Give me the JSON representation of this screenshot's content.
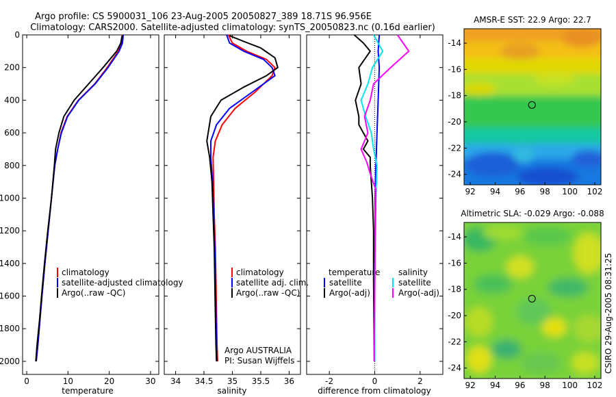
{
  "title_line1": "Argo profile: CS 5900031_106 23-Aug-2005 20050827_389 18.71S 96.956E",
  "title_line2": "Climatology: CARS2000. Satellite-adjusted climatology: synTS_20050823.nc (0.16d earlier)",
  "side_label": "CSIRO 29-Aug-2005 08:31:25",
  "colors": {
    "climatology": "#ff0000",
    "satellite": "#0000ff",
    "argo": "#000000",
    "salinity_satellite": "#00e5ee",
    "salinity_argo": "#ff00ff"
  },
  "chart_data": [
    {
      "type": "line",
      "xlabel": "temperature",
      "ylabel": "",
      "xlim": [
        -1,
        32
      ],
      "ylim": [
        2080,
        0
      ],
      "xticks": [
        0,
        10,
        20,
        30
      ],
      "yticks": [
        0,
        200,
        400,
        600,
        800,
        1000,
        1200,
        1400,
        1600,
        1800,
        2000
      ],
      "series": [
        {
          "name": "climatology",
          "color": "#ff0000",
          "x": [
            23.2,
            23.0,
            22.2,
            19.5,
            16.5,
            12.5,
            9.8,
            8.3,
            7.5,
            6.8,
            6.0,
            5.2,
            4.4,
            3.7,
            3.2,
            2.7,
            2.3
          ],
          "y": [
            0,
            50,
            100,
            200,
            300,
            400,
            500,
            600,
            700,
            800,
            1000,
            1200,
            1400,
            1600,
            1750,
            1900,
            2000
          ]
        },
        {
          "name": "satellite-adjusted climatology",
          "color": "#0000ff",
          "x": [
            23.4,
            23.2,
            22.4,
            19.7,
            16.6,
            12.6,
            9.9,
            8.4,
            7.5,
            6.8,
            6.0,
            5.2,
            4.4,
            3.7,
            3.2,
            2.7,
            2.3
          ],
          "y": [
            0,
            50,
            100,
            200,
            300,
            400,
            500,
            600,
            700,
            800,
            1000,
            1200,
            1400,
            1600,
            1750,
            1900,
            2000
          ]
        },
        {
          "name": "Argo(..raw -QC)",
          "color": "#000000",
          "x": [
            23.1,
            22.8,
            21.8,
            18.5,
            15.0,
            11.5,
            9.0,
            7.8,
            7.0,
            6.7,
            6.0,
            5.1,
            4.3,
            3.6,
            3.1,
            2.5,
            2.2
          ],
          "y": [
            5,
            50,
            100,
            200,
            300,
            400,
            500,
            600,
            700,
            800,
            1000,
            1200,
            1400,
            1600,
            1750,
            1900,
            2000
          ]
        }
      ],
      "legend": [
        "climatology",
        "satellite-adjusted climatology",
        "Argo(..raw -QC)"
      ]
    },
    {
      "type": "line",
      "xlabel": "salinity",
      "ylabel": "",
      "xlim": [
        33.8,
        36.2
      ],
      "ylim": [
        2080,
        0
      ],
      "xticks": [
        34,
        34.5,
        35,
        35.5,
        36
      ],
      "series": [
        {
          "name": "climatology",
          "color": "#ff0000",
          "x": [
            34.93,
            35.0,
            35.25,
            35.6,
            35.75,
            35.7,
            35.4,
            35.05,
            34.82,
            34.7,
            34.66,
            34.67,
            34.68,
            34.7,
            34.71,
            34.72,
            34.73,
            34.74
          ],
          "y": [
            0,
            50,
            100,
            150,
            200,
            250,
            350,
            450,
            550,
            650,
            750,
            900,
            1100,
            1300,
            1500,
            1700,
            1900,
            2000
          ]
        },
        {
          "name": "satellite adj. clim.",
          "color": "#0000ff",
          "x": [
            34.9,
            34.95,
            35.2,
            35.55,
            35.7,
            35.75,
            35.35,
            34.95,
            34.72,
            34.62,
            34.62,
            34.65,
            34.67,
            34.69,
            34.7,
            34.71,
            34.72,
            34.73
          ],
          "y": [
            0,
            50,
            100,
            150,
            200,
            250,
            350,
            450,
            550,
            650,
            750,
            900,
            1100,
            1300,
            1500,
            1700,
            1900,
            2000
          ]
        },
        {
          "name": "Argo(..raw -QC)",
          "color": "#000000",
          "x": [
            34.95,
            35.2,
            35.5,
            35.75,
            35.8,
            35.6,
            35.2,
            34.8,
            34.62,
            34.55,
            34.6,
            34.64,
            34.66,
            34.68,
            34.69,
            34.7,
            34.71,
            34.72
          ],
          "y": [
            5,
            40,
            80,
            140,
            200,
            250,
            320,
            400,
            500,
            650,
            750,
            900,
            1100,
            1300,
            1500,
            1700,
            1900,
            2000
          ]
        }
      ],
      "legend": [
        "climatology",
        "satellite adj. clim.",
        "Argo(..raw -QC)"
      ],
      "annotation": [
        "Argo AUSTRALIA",
        "PI: Susan Wijffels"
      ]
    },
    {
      "type": "line",
      "xlabel": "difference from climatology",
      "ylabel": "",
      "xlim": [
        -3,
        3
      ],
      "ylim": [
        2080,
        0
      ],
      "xticks": [
        -2,
        0,
        2
      ],
      "series": [
        {
          "name": "temperature satellite",
          "color": "#0000ff",
          "x": [
            0.2,
            0.15,
            0.2,
            0.15,
            0.1,
            0.05,
            0.02,
            0.0,
            0.0,
            0.0
          ],
          "y": [
            0,
            100,
            200,
            400,
            600,
            800,
            1000,
            1400,
            1800,
            2000
          ]
        },
        {
          "name": "temperature Argo(-adj)",
          "color": "#000000",
          "x": [
            -0.9,
            -0.5,
            -0.2,
            -0.7,
            -0.6,
            -0.85,
            -0.7,
            -0.7,
            -0.5,
            -0.3,
            -0.5,
            -0.2,
            -0.2,
            -0.1,
            -0.05,
            -0.05,
            -0.03,
            -0.02
          ],
          "y": [
            0,
            50,
            100,
            200,
            300,
            400,
            500,
            550,
            600,
            650,
            700,
            750,
            800,
            1000,
            1200,
            1500,
            1800,
            2000
          ]
        },
        {
          "name": "salinity satellite",
          "color": "#00e5ee",
          "x": [
            -0.05,
            0.35,
            -0.1,
            -0.3,
            -0.6,
            -0.4,
            -0.15,
            -0.05,
            0.1,
            0.05,
            0.0,
            0.0
          ],
          "y": [
            0,
            100,
            200,
            300,
            400,
            500,
            600,
            700,
            800,
            1000,
            1500,
            2000
          ]
        },
        {
          "name": "salinity Argo(-adj)",
          "color": "#ff00ff",
          "x": [
            1.0,
            1.5,
            0.7,
            -0.05,
            -0.2,
            -0.45,
            -0.3,
            -0.6,
            -0.35,
            -0.2,
            0.05,
            0.02,
            0.0,
            -0.02
          ],
          "y": [
            0,
            100,
            200,
            300,
            400,
            500,
            600,
            700,
            780,
            850,
            950,
            1200,
            1600,
            2000
          ]
        }
      ],
      "legend_headers": [
        "temperature",
        "salinity"
      ],
      "legend": [
        "satellite",
        "Argo(-adj)",
        "satellite",
        "Argo(-adj)"
      ]
    }
  ],
  "maps": [
    {
      "title": "AMSR-E SST: 22.9 Argo: 22.7",
      "xticks": [
        "92",
        "94",
        "96",
        "98",
        "100",
        "102"
      ],
      "yticks": [
        "-14",
        "-16",
        "-18",
        "-20",
        "-22",
        "-24"
      ],
      "lon_range": [
        91.5,
        102.5
      ],
      "lat_range": [
        -24.8,
        -12.9
      ],
      "marker": {
        "lon": 96.956,
        "lat": -18.71
      }
    },
    {
      "title": "Altimetric SLA: -0.029 Argo: -0.088",
      "xticks": [
        "92",
        "94",
        "96",
        "98",
        "100",
        "102"
      ],
      "yticks": [
        "-14",
        "-16",
        "-18",
        "-20",
        "-22",
        "-24"
      ],
      "lon_range": [
        91.5,
        102.5
      ],
      "lat_range": [
        -24.8,
        -12.9
      ],
      "marker": {
        "lon": 96.956,
        "lat": -18.71
      }
    }
  ]
}
